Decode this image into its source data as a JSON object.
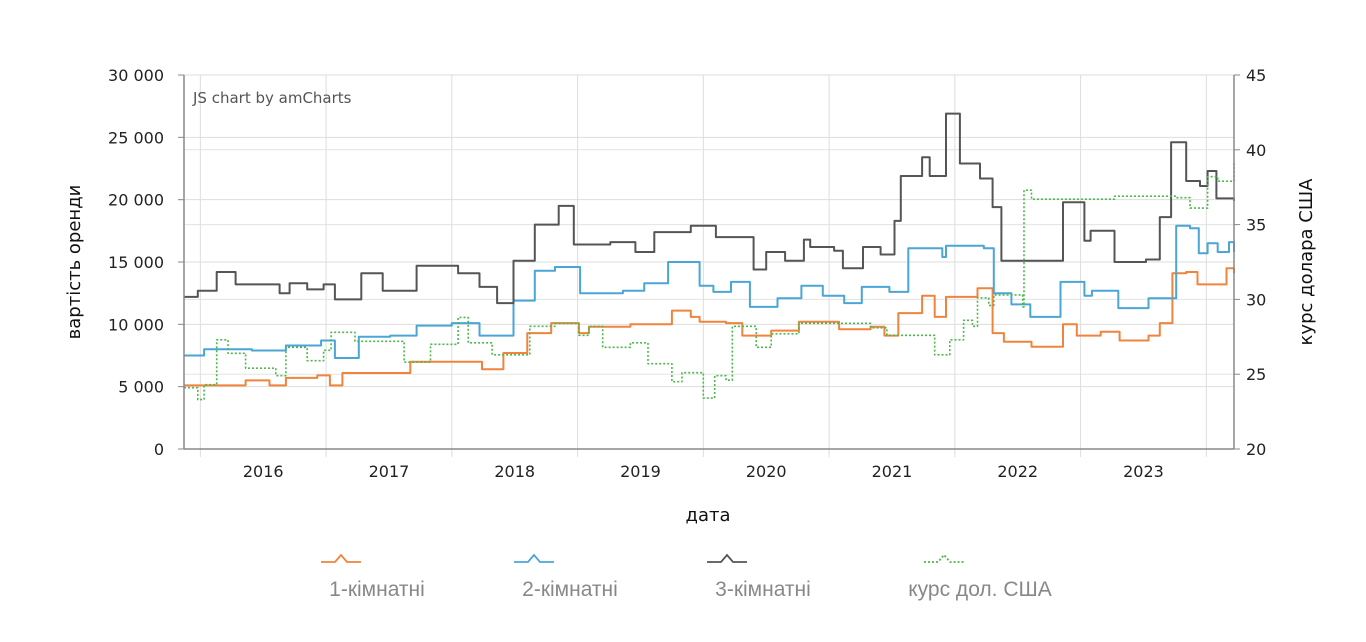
{
  "chart_data": {
    "type": "line",
    "title": "",
    "credit": "JS chart by amCharts",
    "xlabel": "дата",
    "ylabel": "вартість оренди",
    "y2label": "курс долара США",
    "xlim": [
      2015.87,
      2024.22
    ],
    "ylim": [
      0,
      30000
    ],
    "y2lim": [
      20,
      45
    ],
    "x_ticks": [
      "2016",
      "2017",
      "2018",
      "2019",
      "2020",
      "2021",
      "2022",
      "2023"
    ],
    "y_ticks": [
      "0",
      "5 000",
      "10 000",
      "15 000",
      "20 000",
      "25 000",
      "30 000"
    ],
    "y_tick_values": [
      0,
      5000,
      10000,
      15000,
      20000,
      25000,
      30000
    ],
    "y2_ticks": [
      "20",
      "25",
      "30",
      "35",
      "40",
      "45"
    ],
    "y2_tick_values": [
      20,
      25,
      30,
      35,
      40,
      45
    ],
    "grid": true,
    "legend_position": "bottom",
    "series": [
      {
        "name": "1-кімнатні",
        "axis": "left",
        "color": "#f0843c",
        "style": "solid",
        "x": [
          2015.87,
          2016.13,
          2016.36,
          2016.55,
          2016.68,
          2016.93,
          2017.03,
          2017.13,
          2017.59,
          2017.67,
          2018.13,
          2018.24,
          2018.34,
          2018.41,
          2018.6,
          2018.79,
          2019.01,
          2019.09,
          2019.42,
          2019.75,
          2019.9,
          2019.97,
          2020.18,
          2020.31,
          2020.54,
          2020.76,
          2021.08,
          2021.33,
          2021.44,
          2021.55,
          2021.74,
          2021.84,
          2021.93,
          2022.18,
          2022.3,
          2022.39,
          2022.61,
          2022.86,
          2022.97,
          2023.16,
          2023.31,
          2023.54,
          2023.63,
          2023.73,
          2023.84,
          2023.93,
          2023.98,
          2024.16,
          2024.22
        ],
        "y": [
          5100,
          5100,
          5500,
          5100,
          5700,
          5900,
          5100,
          6100,
          6100,
          7000,
          7000,
          6400,
          6400,
          7700,
          9300,
          10100,
          9300,
          9800,
          10000,
          11100,
          10600,
          10200,
          10100,
          9100,
          9500,
          10200,
          9600,
          9800,
          9100,
          10900,
          12300,
          10600,
          12200,
          12900,
          9300,
          8600,
          8200,
          10000,
          9100,
          9400,
          8700,
          9100,
          10100,
          14100,
          14200,
          13200,
          13200,
          14500,
          14100
        ]
      },
      {
        "name": "2-кімнатні",
        "axis": "left",
        "color": "#4aa6d6",
        "style": "solid",
        "x": [
          2015.87,
          2016.03,
          2016.41,
          2016.68,
          2016.96,
          2017.07,
          2017.26,
          2017.51,
          2017.72,
          2018.0,
          2018.22,
          2018.34,
          2018.49,
          2018.66,
          2018.82,
          2019.02,
          2019.36,
          2019.53,
          2019.72,
          2019.97,
          2020.08,
          2020.22,
          2020.37,
          2020.59,
          2020.78,
          2020.95,
          2021.12,
          2021.26,
          2021.48,
          2021.63,
          2021.9,
          2021.93,
          2022.23,
          2022.31,
          2022.45,
          2022.6,
          2022.84,
          2023.03,
          2023.09,
          2023.3,
          2023.54,
          2023.76,
          2023.87,
          2023.94,
          2024.01,
          2024.09,
          2024.18,
          2024.22
        ],
        "y": [
          7500,
          8000,
          7900,
          8300,
          8700,
          7300,
          9000,
          9100,
          9900,
          10100,
          9100,
          9100,
          11900,
          14300,
          14600,
          12500,
          12700,
          13300,
          15000,
          13100,
          12600,
          13400,
          11400,
          12100,
          13100,
          12300,
          11700,
          13000,
          12600,
          16100,
          15400,
          16300,
          16100,
          12500,
          11600,
          10600,
          13400,
          12300,
          12700,
          11300,
          12100,
          17900,
          17700,
          15700,
          16500,
          15800,
          16600,
          15800
        ]
      },
      {
        "name": "3-кімнатні",
        "axis": "left",
        "color": "#555555",
        "style": "solid",
        "x": [
          2015.87,
          2015.98,
          2016.13,
          2016.28,
          2016.63,
          2016.71,
          2016.85,
          2016.98,
          2017.07,
          2017.28,
          2017.45,
          2017.72,
          2018.05,
          2018.22,
          2018.36,
          2018.49,
          2018.66,
          2018.85,
          2018.97,
          2019.26,
          2019.46,
          2019.61,
          2019.9,
          2020.1,
          2020.4,
          2020.5,
          2020.65,
          2020.8,
          2020.85,
          2021.04,
          2021.11,
          2021.27,
          2021.41,
          2021.52,
          2021.57,
          2021.74,
          2021.8,
          2021.93,
          2022.04,
          2022.2,
          2022.3,
          2022.37,
          2022.69,
          2022.86,
          2023.03,
          2023.08,
          2023.27,
          2023.52,
          2023.63,
          2023.72,
          2023.84,
          2023.95,
          2024.01,
          2024.08,
          2024.22
        ],
        "y": [
          12200,
          12700,
          14200,
          13200,
          12500,
          13300,
          12800,
          13200,
          12000,
          14100,
          12700,
          14700,
          14100,
          13000,
          11700,
          15100,
          18000,
          19500,
          16400,
          16600,
          15800,
          17400,
          17900,
          17000,
          14400,
          15800,
          15100,
          16800,
          16200,
          15900,
          14500,
          16200,
          15600,
          18300,
          21900,
          23400,
          21900,
          26900,
          22900,
          21700,
          19400,
          15100,
          15100,
          19800,
          16700,
          17500,
          15000,
          15200,
          18600,
          24600,
          21500,
          21100,
          22300,
          20100,
          19900
        ]
      },
      {
        "name": "курс дол. США",
        "axis": "right",
        "color": "#4cb84c",
        "style": "dotted",
        "x": [
          2015.87,
          2015.98,
          2016.03,
          2016.13,
          2016.22,
          2016.36,
          2016.6,
          2016.68,
          2016.85,
          2016.98,
          2017.04,
          2017.23,
          2017.62,
          2017.83,
          2018.05,
          2018.13,
          2018.32,
          2018.62,
          2018.82,
          2019.01,
          2019.09,
          2019.2,
          2019.42,
          2019.56,
          2019.75,
          2019.83,
          2020.0,
          2020.09,
          2020.18,
          2020.23,
          2020.42,
          2020.54,
          2020.76,
          2021.0,
          2021.33,
          2021.46,
          2021.84,
          2021.96,
          2022.07,
          2022.14,
          2022.18,
          2022.27,
          2022.31,
          2022.54,
          2022.55,
          2022.61,
          2023.27,
          2023.76,
          2023.87,
          2024.01,
          2024.09,
          2024.22
        ],
        "y": [
          24.1,
          23.3,
          24.3,
          27.3,
          26.4,
          25.4,
          24.9,
          26.8,
          25.9,
          26.6,
          27.8,
          27.2,
          25.8,
          27.0,
          28.8,
          27.1,
          26.3,
          28.2,
          28.4,
          27.6,
          28.2,
          26.8,
          27.1,
          25.7,
          24.5,
          25.1,
          23.4,
          24.9,
          24.6,
          28.2,
          26.8,
          27.7,
          28.4,
          28.4,
          28.1,
          27.6,
          26.3,
          27.3,
          28.6,
          28.2,
          30.1,
          29.6,
          30.3,
          29.5,
          37.3,
          36.7,
          36.9,
          36.8,
          36.1,
          38.2,
          37.9,
          39.1
        ]
      }
    ]
  }
}
